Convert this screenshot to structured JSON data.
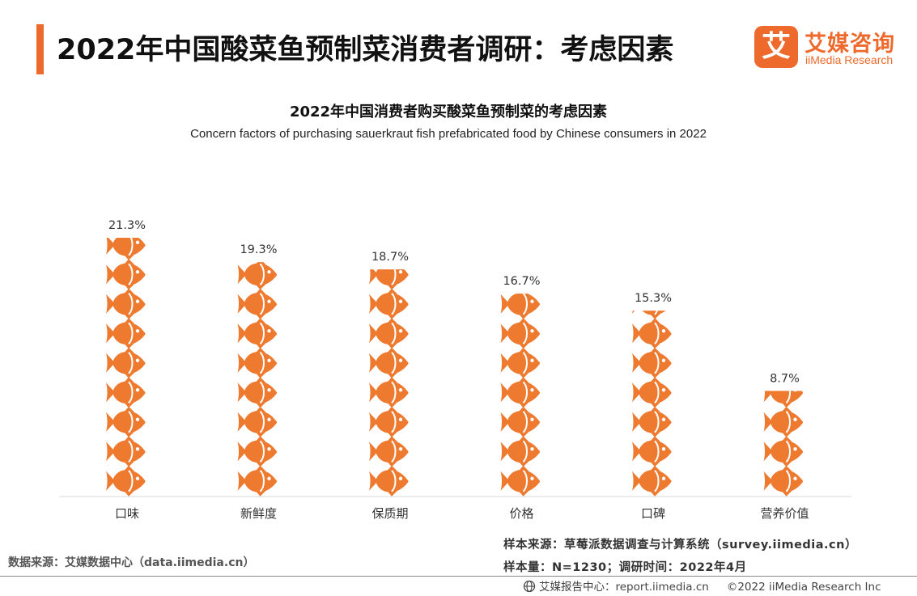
{
  "header": {
    "title": "2022年中国酸菜鱼预制菜消费者调研：考虑因素",
    "accent_color": "#ee6a2c"
  },
  "logo": {
    "mark_char": "艾",
    "name_cn": "艾媒咨询",
    "name_en": "iiMedia Research"
  },
  "chart_data": {
    "type": "bar",
    "title": "2022年中国消费者购买酸菜鱼预制菜的考虑因素",
    "subtitle": "Concern factors of purchasing sauerkraut fish prefabricated food by Chinese consumers in 2022",
    "categories": [
      "口味",
      "新鲜度",
      "保质期",
      "价格",
      "口碑",
      "营养价值"
    ],
    "values": [
      21.3,
      19.3,
      18.7,
      16.7,
      15.3,
      8.7
    ],
    "value_labels": [
      "21.3%",
      "19.3%",
      "18.7%",
      "16.7%",
      "15.3%",
      "8.7%"
    ],
    "unit": "%",
    "ylim": [
      0,
      23.3
    ],
    "mark": "fish-icon",
    "bar_color": "#ee7a30",
    "grid": false
  },
  "footer": {
    "data_source": "数据来源：艾媒数据中心（data.iimedia.cn）",
    "sample_source": "样本来源：草莓派数据调查与计算系统（survey.iimedia.cn）",
    "sample_size": "样本量：N=1230；调研时间：2022年4月",
    "report_center": "艾媒报告中心：report.iimedia.cn",
    "copyright": "©2022 iiMedia Research Inc"
  }
}
